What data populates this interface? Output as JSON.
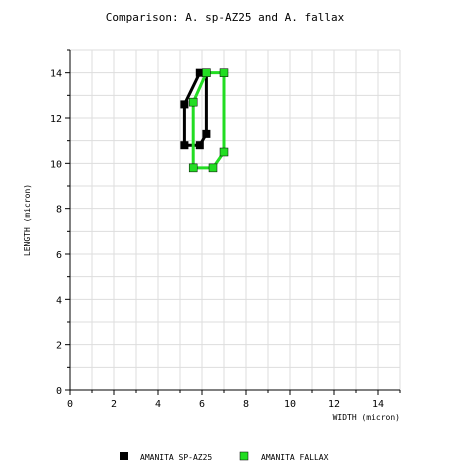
{
  "chart_data": {
    "type": "line",
    "title": "Comparison: A. sp-AZ25 and A. fallax",
    "xlabel": "WIDTH (micron)",
    "ylabel": "LENGTH (micron)",
    "xlim": [
      0,
      15
    ],
    "ylim": [
      0,
      15
    ],
    "x_ticks": [
      0,
      2,
      4,
      6,
      8,
      10,
      12,
      14
    ],
    "y_ticks": [
      0,
      2,
      4,
      6,
      8,
      10,
      12,
      14
    ],
    "grid": true,
    "legend_position": "bottom",
    "series": [
      {
        "name": "AMANITA SP-AZ25",
        "color": "#000000",
        "points": [
          [
            5.2,
            10.8
          ],
          [
            5.9,
            10.8
          ],
          [
            6.2,
            11.3
          ],
          [
            6.2,
            14.0
          ],
          [
            5.9,
            14.0
          ],
          [
            5.2,
            12.6
          ],
          [
            5.2,
            10.8
          ]
        ]
      },
      {
        "name": "AMANITA FALLAX",
        "color": "#22dd22",
        "points": [
          [
            5.6,
            9.8
          ],
          [
            6.5,
            9.8
          ],
          [
            7.0,
            10.5
          ],
          [
            7.0,
            14.0
          ],
          [
            6.2,
            14.0
          ],
          [
            5.6,
            12.7
          ],
          [
            5.6,
            9.8
          ]
        ]
      }
    ]
  }
}
